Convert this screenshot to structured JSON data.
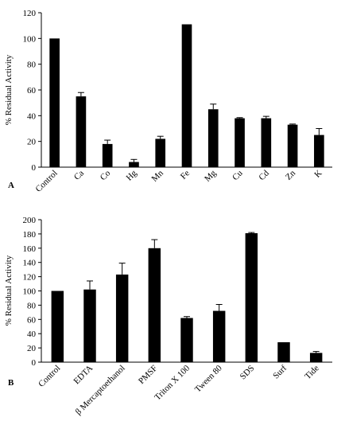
{
  "chart_data": [
    {
      "panel": "A",
      "type": "bar",
      "ylabel": "% Residual Activity",
      "ylim": [
        0,
        120
      ],
      "yticks": [
        0,
        20,
        40,
        60,
        80,
        100,
        120
      ],
      "categories": [
        "Control",
        "Ca",
        "Co",
        "Hg",
        "Mn",
        "Fe",
        "Mg",
        "Cu",
        "Cd",
        "Zn",
        "K"
      ],
      "values": [
        100,
        55,
        18,
        4,
        22,
        111,
        45,
        38,
        38,
        33,
        25
      ],
      "errors": [
        0,
        3,
        3,
        2,
        2,
        0,
        4,
        0.5,
        1.5,
        0.5,
        5
      ],
      "bar_color": "#000000"
    },
    {
      "panel": "B",
      "type": "bar",
      "ylabel": "% Residual Activity",
      "ylim": [
        0,
        200
      ],
      "yticks": [
        0,
        20,
        40,
        60,
        80,
        100,
        120,
        140,
        160,
        180,
        200
      ],
      "categories": [
        "Control",
        "EDTA",
        "β Mercaptoethanol",
        "PMSF",
        "Triton X 100",
        "Tween 80",
        "SDS",
        "Surf",
        "Tide"
      ],
      "values": [
        100,
        102,
        123,
        160,
        62,
        72,
        181,
        28,
        13
      ],
      "errors": [
        0,
        12,
        16,
        12,
        2,
        9,
        1,
        0,
        2
      ],
      "bar_color": "#000000"
    }
  ]
}
